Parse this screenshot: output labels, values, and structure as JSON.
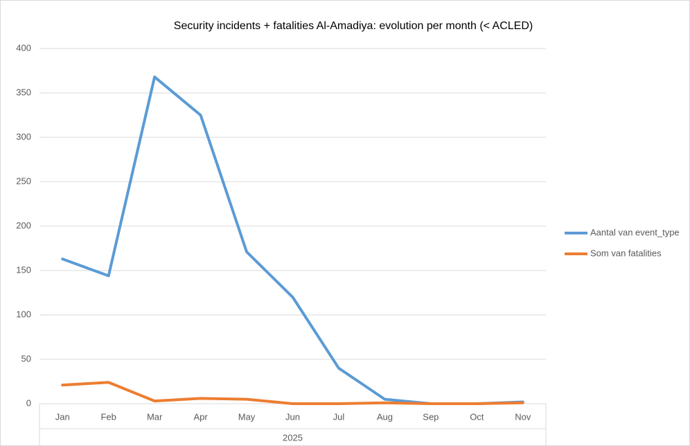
{
  "chart_data": {
    "type": "line",
    "title": "Security incidents + fatalities Al-Amadiya: evolution per month (< ACLED)",
    "xlabel": "2025",
    "categories": [
      "Jan",
      "Feb",
      "Mar",
      "Apr",
      "May",
      "Jun",
      "Jul",
      "Aug",
      "Sep",
      "Oct",
      "Nov"
    ],
    "series": [
      {
        "name": "Aantal van event_type",
        "color": "#5b9bd5",
        "values": [
          163,
          144,
          368,
          325,
          171,
          120,
          40,
          5,
          0,
          0,
          2
        ]
      },
      {
        "name": "Som van fatalities",
        "color": "#ed7d31",
        "values": [
          21,
          24,
          3,
          6,
          5,
          0,
          0,
          1,
          0,
          0,
          1
        ]
      }
    ],
    "ylim": [
      0,
      400
    ],
    "yticks": [
      0,
      50,
      100,
      150,
      200,
      250,
      300,
      350,
      400
    ],
    "grid": true,
    "legend": "right"
  }
}
